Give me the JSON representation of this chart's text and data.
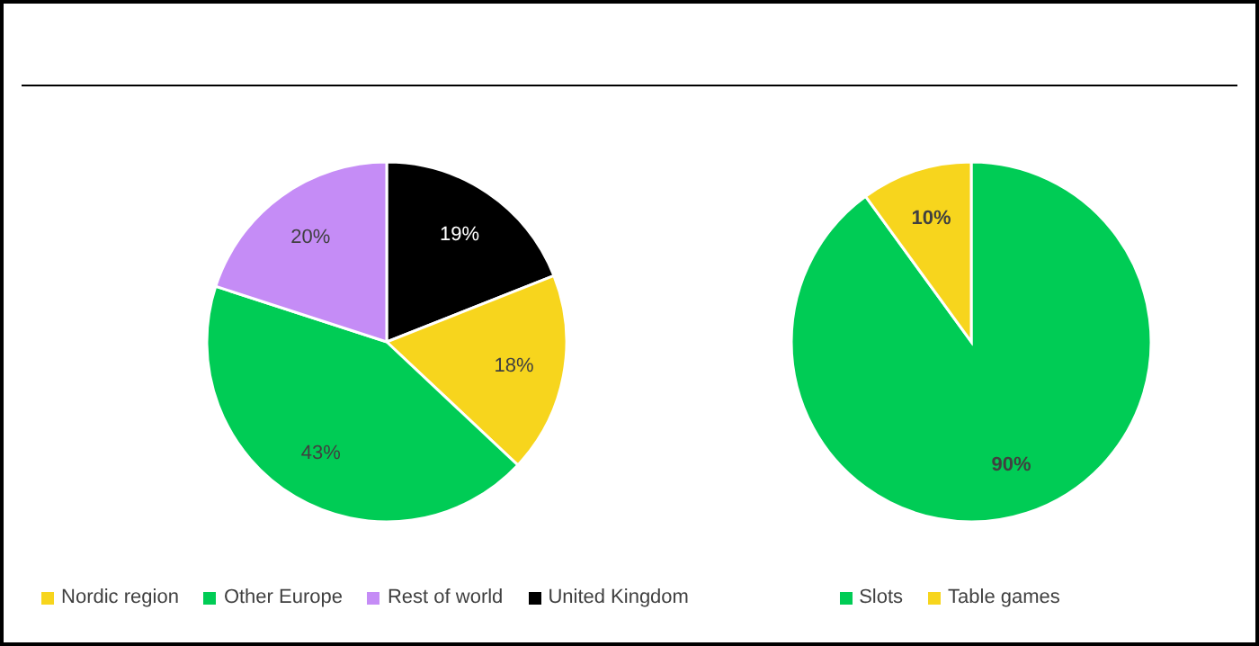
{
  "chart_data": [
    {
      "type": "pie",
      "categories": [
        "United Kingdom",
        "Nordic region",
        "Other Europe",
        "Rest of world"
      ],
      "values": [
        19,
        18,
        43,
        20
      ],
      "colors": [
        "#000000",
        "#f7d51d",
        "#00cc55",
        "#c58cf6"
      ],
      "value_labels": [
        "19%",
        "18%",
        "43%",
        "20%"
      ],
      "legend": "bottom"
    },
    {
      "type": "pie",
      "categories": [
        "Slots",
        "Table games"
      ],
      "values": [
        90,
        10
      ],
      "colors": [
        "#00cc55",
        "#f7d51d"
      ],
      "value_labels": [
        "90%",
        "10%"
      ],
      "legend": "bottom"
    }
  ]
}
